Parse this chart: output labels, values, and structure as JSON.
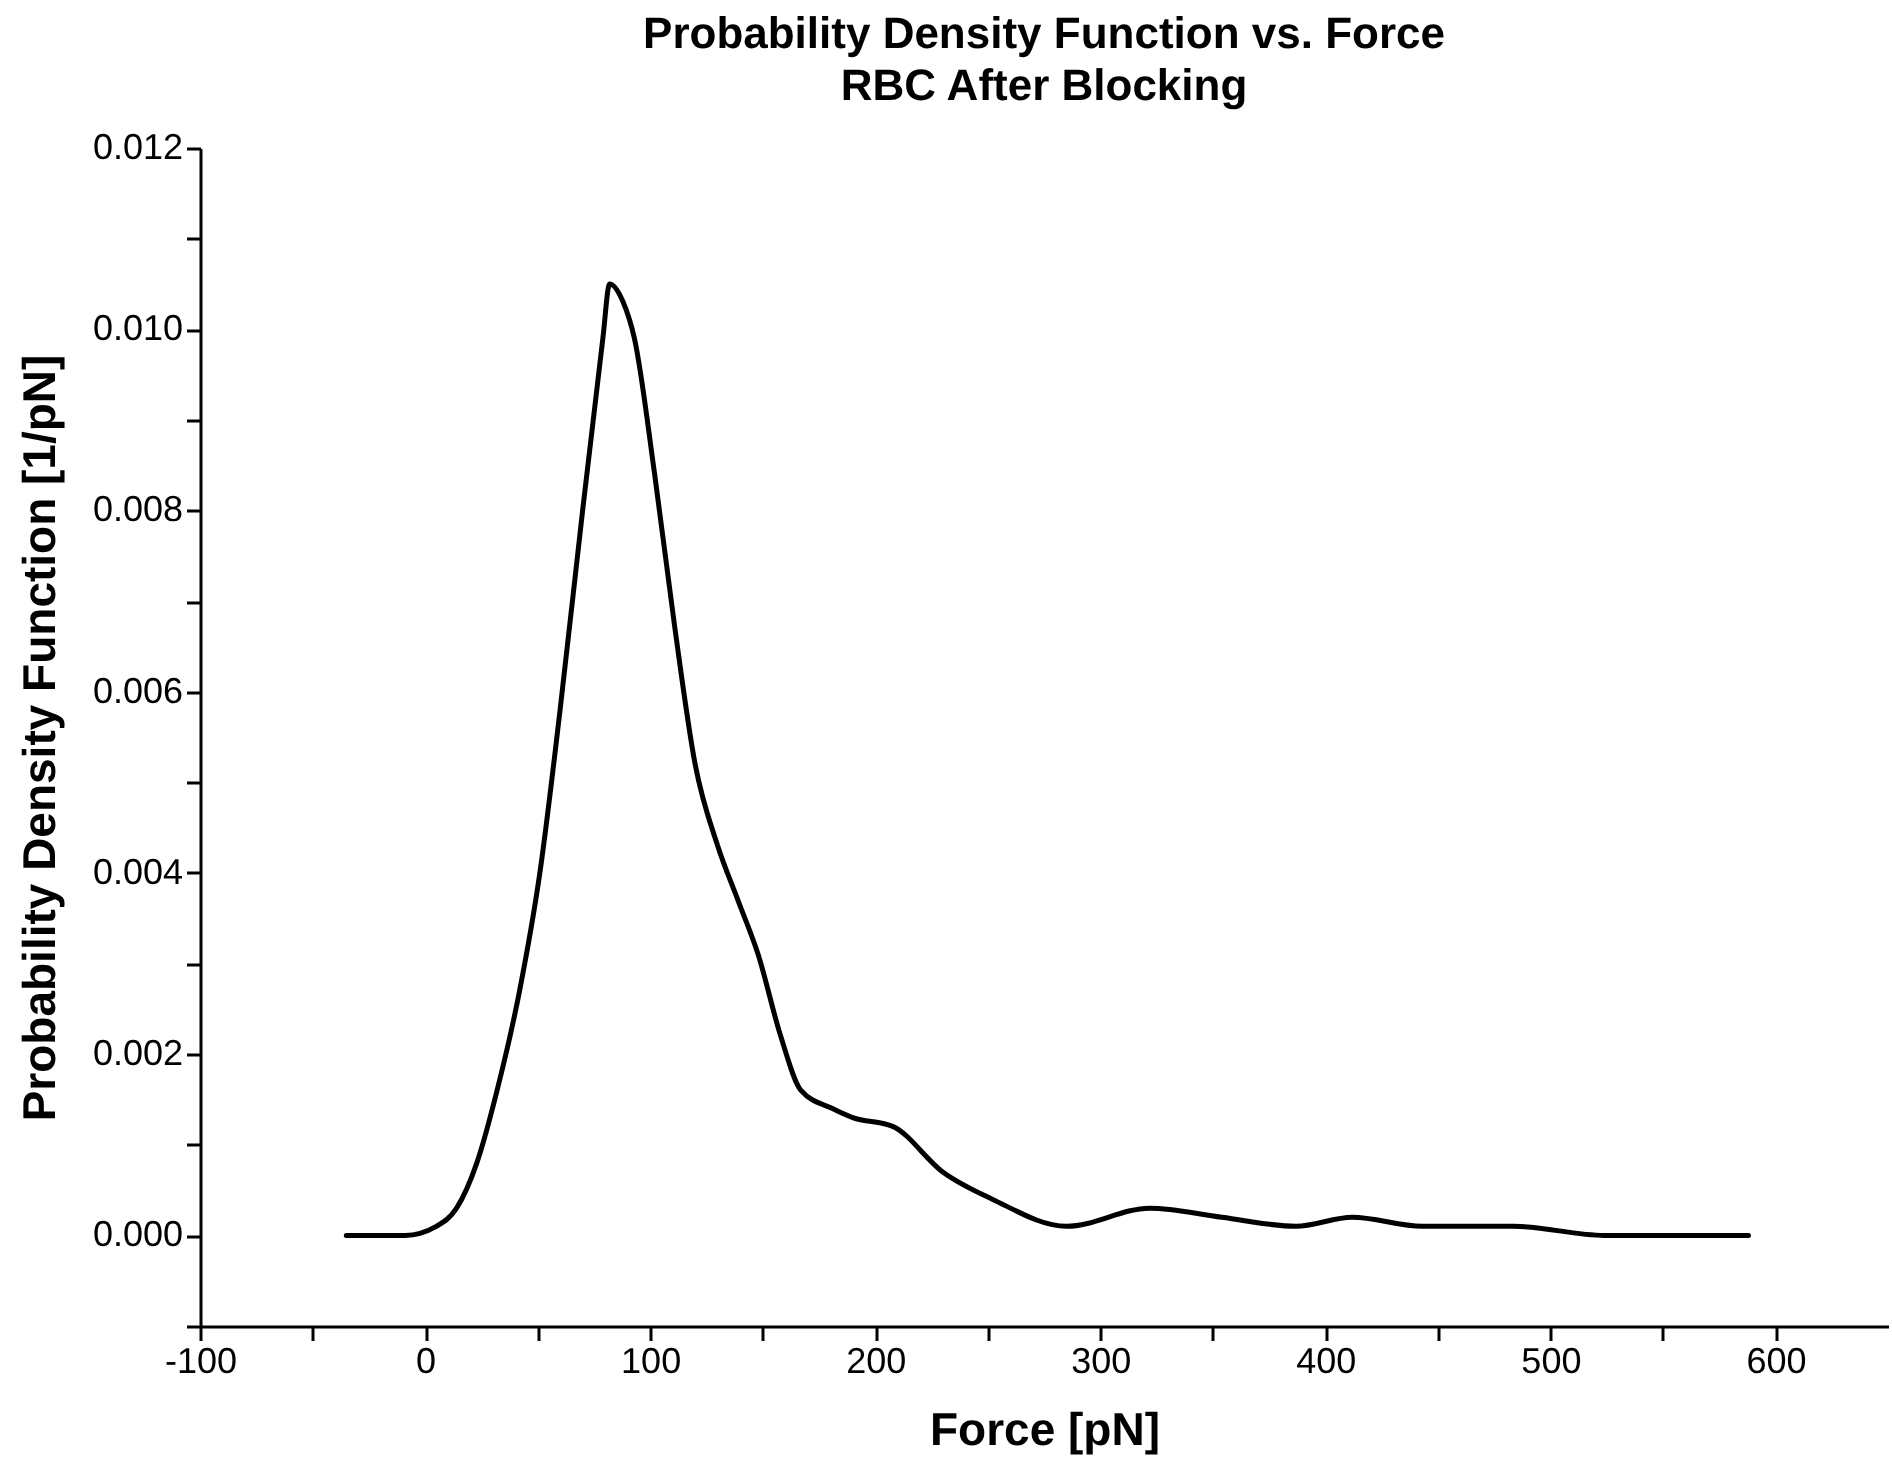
{
  "chart_data": {
    "type": "line",
    "title": "Probability Density Function vs. Force",
    "subtitle": "RBC After Blocking",
    "xlabel": "Force [pN]",
    "ylabel": "Probability Density Function [1/pN]",
    "x": [
      -35,
      -9,
      5,
      14,
      23,
      32,
      42,
      51,
      60,
      70,
      79,
      82,
      88,
      93,
      102,
      111,
      120,
      130,
      139,
      148,
      158,
      167,
      181,
      190,
      208,
      230,
      252,
      285,
      322,
      354,
      387,
      412,
      443,
      484,
      524,
      588
    ],
    "series": [
      {
        "color": "#000000",
        "values": [
          0,
          0,
          0.0001,
          0.0003,
          0.0008,
          0.0016,
          0.0027,
          0.004,
          0.0058,
          0.008,
          0.0099,
          0.0105,
          0.0103,
          0.0099,
          0.0084,
          0.0067,
          0.0052,
          0.0043,
          0.0037,
          0.0031,
          0.0022,
          0.0016,
          0.0014,
          0.0013,
          0.0012,
          0.0007,
          0.0004,
          0.0001,
          0.0003,
          0.0002,
          0.0001,
          0.0002,
          0.0001,
          0.0001,
          0,
          0
        ]
      }
    ],
    "xlim": [
      -100,
      650
    ],
    "ylim": [
      -0.001,
      0.012
    ],
    "xticks": [
      -100,
      {
        "value": -50,
        "label": null
      },
      0,
      {
        "value": 50,
        "label": null
      },
      100,
      {
        "value": 150,
        "label": null
      },
      200,
      {
        "value": 250,
        "label": null
      },
      300,
      {
        "value": 350,
        "label": null
      },
      400,
      {
        "value": 450,
        "label": null
      },
      500,
      {
        "value": 550,
        "label": null
      },
      600
    ],
    "yticks": [
      {
        "value": -0.001,
        "label": null
      },
      {
        "value": 0,
        "label": "0.000"
      },
      {
        "value": 0.001,
        "label": null
      },
      {
        "value": 0.002,
        "label": "0.002"
      },
      {
        "value": 0.003,
        "label": null
      },
      {
        "value": 0.004,
        "label": "0.004"
      },
      {
        "value": 0.005,
        "label": null
      },
      {
        "value": 0.006,
        "label": "0.006"
      },
      {
        "value": 0.007,
        "label": null
      },
      {
        "value": 0.008,
        "label": "0.008"
      },
      {
        "value": 0.009,
        "label": null
      },
      {
        "value": 0.01,
        "label": "0.010"
      },
      {
        "value": 0.011,
        "label": null
      },
      {
        "value": 0.012,
        "label": "0.012"
      }
    ],
    "grid": false,
    "marker": "none",
    "line_style": "solid"
  }
}
